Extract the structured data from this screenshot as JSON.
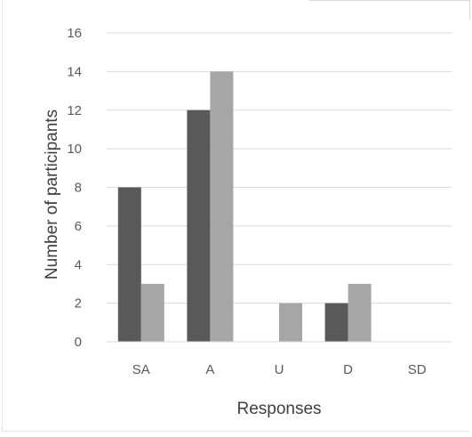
{
  "chart_data": {
    "type": "bar",
    "title": "",
    "categories": [
      "SA",
      "A",
      "U",
      "D",
      "SD"
    ],
    "series": [
      {
        "values": [
          8,
          12,
          0,
          2,
          0
        ],
        "color": "#595959"
      },
      {
        "values": [
          3,
          14,
          2,
          3,
          0
        ],
        "color": "#a6a6a6"
      }
    ],
    "xlabel": "Responses",
    "ylabel": "Number of participants",
    "ylim": [
      0,
      16
    ],
    "yticks": [
      0,
      2,
      4,
      6,
      8,
      10,
      12,
      14,
      16
    ],
    "grid": true,
    "gridline_color": "#d9d9d9",
    "legend": "none"
  }
}
